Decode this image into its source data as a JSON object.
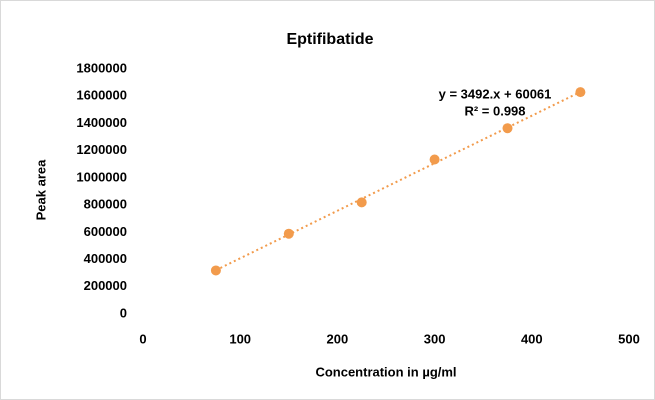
{
  "chart_data": {
    "type": "scatter",
    "title": "Eptifibatide",
    "x_label": "Concentration in µg/ml",
    "y_label": "Peak area",
    "x": [
      75,
      150,
      225,
      300,
      375,
      450
    ],
    "values": [
      320000,
      590000,
      820000,
      1135000,
      1365000,
      1630000
    ],
    "color": "#f29b4c",
    "xlim": [
      0,
      500
    ],
    "xticks": [
      0,
      100,
      200,
      300,
      400,
      500
    ],
    "ylim": [
      0,
      1800000
    ],
    "yticks": [
      0,
      200000,
      400000,
      600000,
      800000,
      1000000,
      1200000,
      1400000,
      1600000,
      1800000
    ],
    "grid": false,
    "trendline": {
      "slope": 3492,
      "intercept": 60061,
      "equation": "y = 3492.x + 60061",
      "r2_label": "R² = 0.998"
    }
  }
}
